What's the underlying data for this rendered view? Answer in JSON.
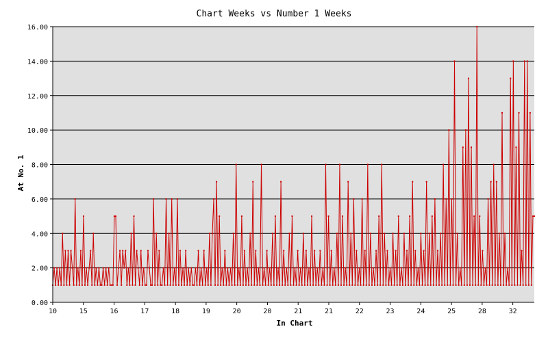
{
  "chart_data": {
    "type": "line",
    "title": "Chart Weeks vs Number 1 Weeks",
    "xlabel": "In Chart",
    "ylabel": "At No. 1",
    "ylim": [
      0,
      16
    ],
    "yticks": [
      "0.00",
      "2.00",
      "4.00",
      "6.00",
      "8.00",
      "10.00",
      "12.00",
      "14.00",
      "16.00"
    ],
    "xtick_labels": [
      "10",
      "15",
      "16",
      "17",
      "18",
      "19",
      "20",
      "20",
      "21",
      "21",
      "22",
      "23",
      "24",
      "25",
      "28",
      "32"
    ],
    "grid": "horizontal",
    "background": "#e0e0e0",
    "line_color": "#cc0000",
    "series": [
      {
        "values": [
          1,
          2,
          1,
          2,
          1,
          2,
          1,
          4,
          1,
          3,
          1,
          3,
          1,
          3,
          2,
          1,
          6,
          1,
          2,
          1,
          3,
          1,
          5,
          1,
          2,
          1,
          2,
          3,
          1,
          4,
          1,
          2,
          1,
          2,
          1,
          1,
          2,
          1,
          2,
          1,
          2,
          1,
          1,
          1,
          5,
          5,
          1,
          2,
          3,
          1,
          3,
          2,
          3,
          1,
          2,
          1,
          4,
          1,
          5,
          1,
          3,
          2,
          1,
          3,
          1,
          2,
          1,
          1,
          3,
          2,
          1,
          1,
          6,
          1,
          4,
          1,
          3,
          1,
          1,
          2,
          1,
          6,
          1,
          4,
          1,
          6,
          1,
          2,
          1,
          6,
          1,
          3,
          1,
          2,
          1,
          3,
          1,
          2,
          1,
          2,
          1,
          1,
          2,
          1,
          3,
          1,
          2,
          1,
          3,
          1,
          2,
          1,
          4,
          1,
          4,
          6,
          1,
          7,
          1,
          5,
          1,
          2,
          1,
          3,
          1,
          2,
          1,
          2,
          1,
          4,
          1,
          8,
          1,
          2,
          1,
          5,
          1,
          3,
          1,
          2,
          1,
          4,
          1,
          7,
          1,
          3,
          1,
          2,
          1,
          8,
          1,
          2,
          1,
          3,
          1,
          2,
          1,
          4,
          1,
          5,
          1,
          2,
          1,
          7,
          1,
          3,
          1,
          2,
          1,
          4,
          1,
          5,
          1,
          2,
          1,
          3,
          1,
          2,
          1,
          4,
          1,
          3,
          1,
          2,
          1,
          5,
          1,
          3,
          1,
          2,
          1,
          3,
          1,
          2,
          1,
          8,
          1,
          5,
          1,
          3,
          1,
          2,
          1,
          4,
          1,
          8,
          1,
          5,
          1,
          2,
          1,
          7,
          1,
          4,
          1,
          6,
          1,
          3,
          1,
          2,
          1,
          6,
          1,
          3,
          1,
          8,
          1,
          4,
          1,
          2,
          1,
          3,
          1,
          5,
          1,
          8,
          1,
          4,
          1,
          3,
          1,
          2,
          1,
          4,
          1,
          3,
          1,
          5,
          1,
          2,
          1,
          4,
          1,
          3,
          1,
          5,
          1,
          7,
          1,
          3,
          1,
          2,
          1,
          4,
          1,
          3,
          1,
          7,
          1,
          4,
          1,
          5,
          1,
          6,
          1,
          3,
          1,
          4,
          1,
          8,
          1,
          6,
          1,
          10,
          1,
          6,
          1,
          14,
          1,
          4,
          1,
          2,
          1,
          9,
          1,
          10,
          1,
          13,
          1,
          9,
          1,
          5,
          1,
          16,
          1,
          5,
          1,
          3,
          1,
          2,
          1,
          6,
          1,
          7,
          1,
          8,
          1,
          7,
          1,
          4,
          1,
          11,
          1,
          4,
          1,
          2,
          1,
          13,
          1,
          14,
          1,
          9,
          1,
          11,
          1,
          3,
          1,
          14,
          1,
          14,
          1,
          11,
          1,
          5,
          5
        ]
      }
    ]
  }
}
